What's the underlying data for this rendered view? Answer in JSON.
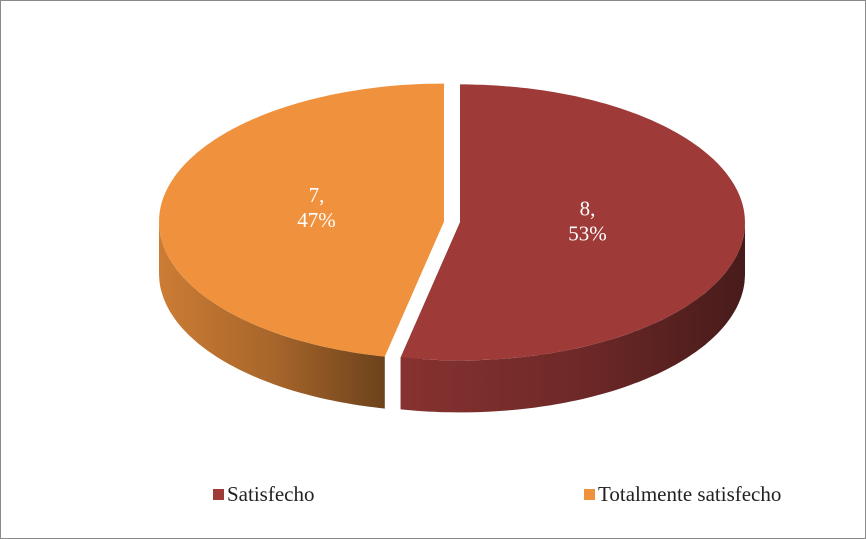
{
  "chart_data": {
    "type": "pie3d",
    "categories": [
      "Satisfecho",
      "Totalmente satisfecho"
    ],
    "values": [
      8,
      7
    ],
    "value_labels": [
      [
        "8,",
        "53%"
      ],
      [
        "7,",
        "47%"
      ]
    ],
    "colors": [
      "#9e3b39",
      "#f0923d"
    ],
    "legend": "bottom"
  }
}
